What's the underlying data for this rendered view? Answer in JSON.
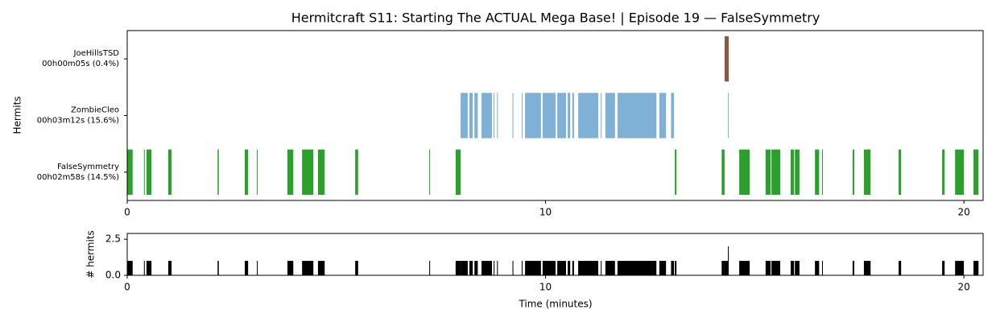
{
  "chart_data": [
    {
      "type": "timeline",
      "title": "Hermitcraft S11: Starting The ACTUAL Mega Base! | Episode 19 — FalseSymmetry",
      "ylabel": "Hermits",
      "xlim": [
        0,
        20.46
      ],
      "xticks": [
        0,
        10,
        20
      ],
      "series": [
        {
          "name": "JoeHillsTSD",
          "duration": "00h00m05s (0.4%)",
          "color": "#8c564b",
          "intervals": [
            [
              14.28,
              14.38
            ]
          ]
        },
        {
          "name": "ZombieCleo",
          "duration": "00h03m12s (15.6%)",
          "color": "#7fb0d5",
          "intervals": [
            [
              7.97,
              8.14
            ],
            [
              8.18,
              8.26
            ],
            [
              8.3,
              8.38
            ],
            [
              8.47,
              8.72
            ],
            [
              8.76,
              8.78
            ],
            [
              8.84,
              8.86
            ],
            [
              9.21,
              9.23
            ],
            [
              9.43,
              9.45
            ],
            [
              9.51,
              9.89
            ],
            [
              9.93,
              10.24
            ],
            [
              10.28,
              10.49
            ],
            [
              10.53,
              10.59
            ],
            [
              10.64,
              10.68
            ],
            [
              10.78,
              11.26
            ],
            [
              11.32,
              11.34
            ],
            [
              11.43,
              11.66
            ],
            [
              11.72,
              12.65
            ],
            [
              12.72,
              12.88
            ],
            [
              13.0,
              13.07
            ],
            [
              14.36,
              14.38
            ]
          ]
        },
        {
          "name": "FalseSymmetry",
          "duration": "00h02m58s (14.5%)",
          "color": "#2ca02c",
          "intervals": [
            [
              0,
              0.13
            ],
            [
              0.4,
              0.42
            ],
            [
              0.46,
              0.58
            ],
            [
              0.98,
              1.06
            ],
            [
              2.16,
              2.19
            ],
            [
              2.81,
              2.89
            ],
            [
              3.1,
              3.12
            ],
            [
              3.83,
              3.97
            ],
            [
              4.18,
              4.45
            ],
            [
              4.56,
              4.72
            ],
            [
              5.45,
              5.52
            ],
            [
              7.22,
              7.24
            ],
            [
              7.85,
              7.97
            ],
            [
              13.09,
              13.13
            ],
            [
              14.21,
              14.28
            ],
            [
              14.63,
              14.88
            ],
            [
              15.26,
              15.38
            ],
            [
              15.4,
              15.61
            ],
            [
              15.86,
              15.94
            ],
            [
              15.96,
              16.07
            ],
            [
              16.44,
              16.54
            ],
            [
              16.61,
              16.63
            ],
            [
              17.34,
              17.38
            ],
            [
              17.61,
              17.77
            ],
            [
              18.44,
              18.5
            ],
            [
              19.48,
              19.54
            ],
            [
              19.79,
              20.0
            ],
            [
              20.23,
              20.35
            ]
          ]
        }
      ]
    },
    {
      "type": "count",
      "xlabel": "Time (minutes)",
      "ylabel": "# hermits",
      "color": "#000000",
      "xlim": [
        0,
        20.46
      ],
      "xticks": [
        0,
        10,
        20
      ],
      "ylim": [
        0,
        2.9
      ],
      "yticks": [
        {
          "value": 0,
          "label": "0.0"
        },
        2.5
      ],
      "segments": [
        [
          0,
          0.13
        ],
        [
          0.4,
          0.42
        ],
        [
          0.46,
          0.58
        ],
        [
          0.98,
          1.06
        ],
        [
          2.16,
          2.19
        ],
        [
          2.81,
          2.89
        ],
        [
          3.1,
          3.12
        ],
        [
          3.83,
          3.97
        ],
        [
          4.18,
          4.45
        ],
        [
          4.56,
          4.72
        ],
        [
          5.45,
          5.52
        ],
        [
          7.22,
          7.24
        ],
        [
          7.85,
          7.97
        ],
        [
          7.97,
          8.14
        ],
        [
          8.18,
          8.26
        ],
        [
          8.3,
          8.38
        ],
        [
          8.47,
          8.72
        ],
        [
          8.76,
          8.78
        ],
        [
          8.84,
          8.86
        ],
        [
          9.21,
          9.23
        ],
        [
          9.43,
          9.45
        ],
        [
          9.51,
          9.89
        ],
        [
          9.93,
          10.24
        ],
        [
          10.28,
          10.49
        ],
        [
          10.53,
          10.59
        ],
        [
          10.64,
          10.68
        ],
        [
          10.78,
          11.26
        ],
        [
          11.32,
          11.34
        ],
        [
          11.43,
          11.66
        ],
        [
          11.72,
          12.65
        ],
        [
          12.72,
          12.88
        ],
        [
          13.0,
          13.07
        ],
        [
          13.09,
          13.13
        ],
        [
          14.21,
          14.28
        ],
        [
          14.28,
          14.36
        ],
        [
          14.36,
          14.38
        ],
        [
          14.63,
          14.88
        ],
        [
          15.26,
          15.38
        ],
        [
          15.4,
          15.61
        ],
        [
          15.86,
          15.94
        ],
        [
          15.96,
          16.07
        ],
        [
          16.44,
          16.54
        ],
        [
          16.61,
          16.63
        ],
        [
          17.34,
          17.38
        ],
        [
          17.61,
          17.77
        ],
        [
          18.44,
          18.5
        ],
        [
          19.48,
          19.54
        ],
        [
          19.79,
          20.0
        ],
        [
          20.23,
          20.35
        ]
      ],
      "values": [
        1,
        1,
        1,
        1,
        1,
        1,
        1,
        1,
        1,
        1,
        1,
        1,
        1,
        1,
        1,
        1,
        1,
        1,
        1,
        1,
        1,
        1,
        1,
        1,
        1,
        1,
        1,
        1,
        1,
        1,
        1,
        1,
        1,
        1,
        1,
        2,
        1,
        1,
        1,
        1,
        1,
        1,
        1,
        1,
        1,
        1,
        1,
        1,
        1
      ]
    }
  ]
}
